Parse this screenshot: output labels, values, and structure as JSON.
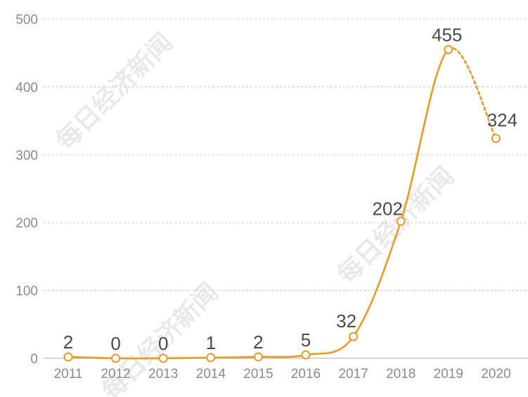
{
  "chart_data": {
    "type": "line",
    "categories": [
      "2011",
      "2012",
      "2013",
      "2014",
      "2015",
      "2016",
      "2017",
      "2018",
      "2019",
      "2020"
    ],
    "values": [
      2,
      0,
      0,
      1,
      2,
      5,
      32,
      202,
      455,
      324
    ],
    "data_labels": [
      "2",
      "0",
      "0",
      "1",
      "2",
      "5",
      "32",
      "202",
      "455",
      "324"
    ],
    "y_ticks": [
      "0",
      "100",
      "200",
      "300",
      "400",
      "500"
    ],
    "ylim": [
      0,
      500
    ],
    "grid": true,
    "dashed_last_segment": true,
    "title": "",
    "xlabel": "",
    "ylabel": ""
  },
  "watermark": "每日经济新闻",
  "colors": {
    "line": "#e89a24",
    "grid": "#c8c8c8",
    "tick_text": "#8a8a8a",
    "label_text": "#4a4a4a"
  }
}
